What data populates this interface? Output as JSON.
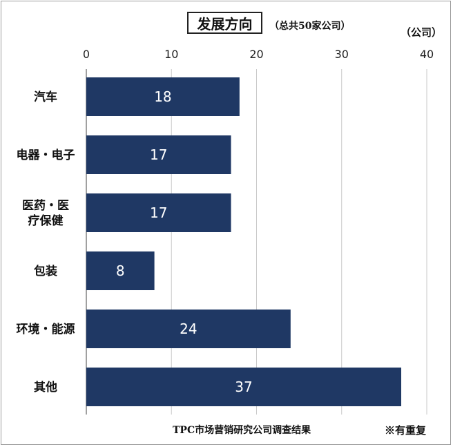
{
  "header": {
    "title": "发展方向",
    "subtitle": "（总共50家公司）",
    "unit": "（公司）"
  },
  "footer": {
    "source": "TPC市场营销研究公司调查结果",
    "note": "※有重复"
  },
  "colors": {
    "bar": "#1f3864",
    "grid": "#c8c8c8",
    "axis": "#808080"
  },
  "chart_data": {
    "type": "bar",
    "orientation": "horizontal",
    "categories": [
      "汽车",
      "电器・电子",
      "医药・医疗保健",
      "包装",
      "环境・能源",
      "其他"
    ],
    "category_lines": [
      [
        "汽车"
      ],
      [
        "电器・电子"
      ],
      [
        "医药・医",
        "疗保健"
      ],
      [
        "包装"
      ],
      [
        "环境・能源"
      ],
      [
        "其他"
      ]
    ],
    "values": [
      18,
      17,
      17,
      8,
      24,
      37
    ],
    "xlim": [
      0,
      40
    ],
    "xticks": [
      0,
      10,
      20,
      30,
      40
    ],
    "grid": true,
    "data_labels": true
  }
}
